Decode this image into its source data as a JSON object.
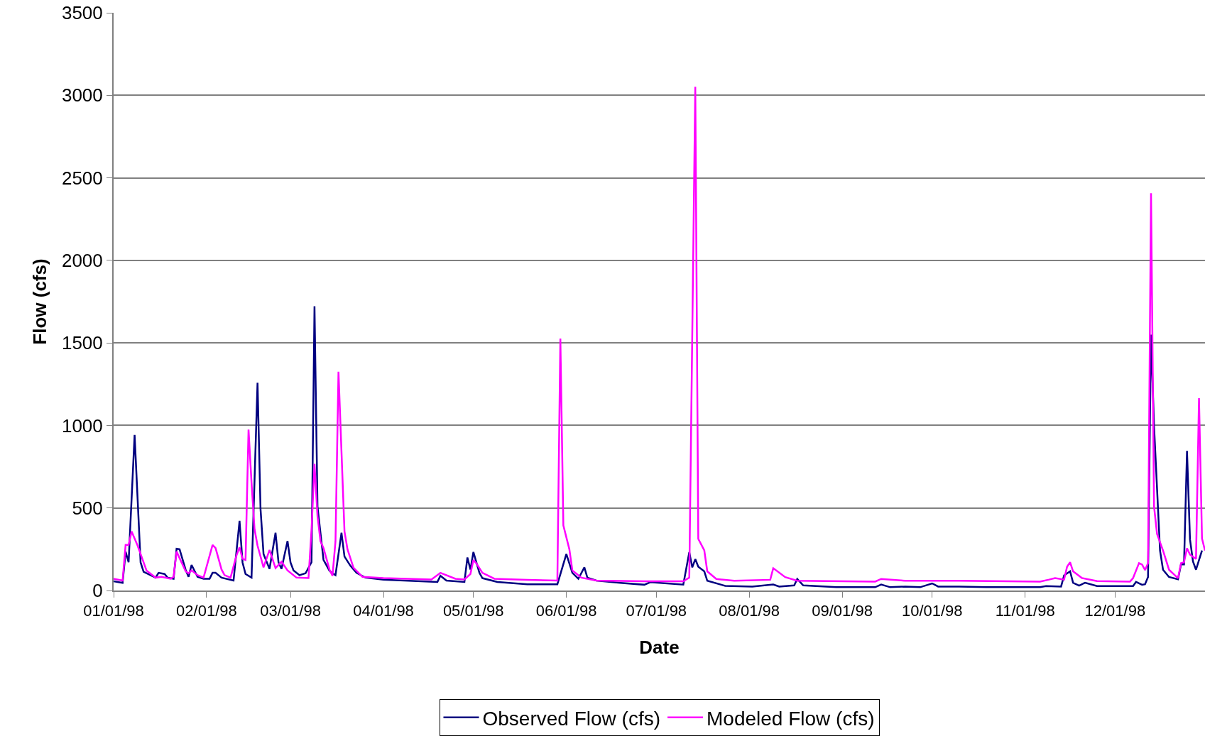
{
  "chart_data": {
    "type": "line",
    "xlabel": "Date",
    "ylabel": "Flow (cfs)",
    "xlim": [
      "1998-01-01",
      "1998-12-31"
    ],
    "xticks": [
      {
        "value": "1998-01-01",
        "label": "01/01/98"
      },
      {
        "value": "1998-02-01",
        "label": "02/01/98"
      },
      {
        "value": "1998-03-01",
        "label": "03/01/98"
      },
      {
        "value": "1998-04-01",
        "label": "04/01/98"
      },
      {
        "value": "1998-05-01",
        "label": "05/01/98"
      },
      {
        "value": "1998-06-01",
        "label": "06/01/98"
      },
      {
        "value": "1998-07-01",
        "label": "07/01/98"
      },
      {
        "value": "1998-08-01",
        "label": "08/01/98"
      },
      {
        "value": "1998-09-01",
        "label": "09/01/98"
      },
      {
        "value": "1998-10-01",
        "label": "10/01/98"
      },
      {
        "value": "1998-11-01",
        "label": "11/01/98"
      },
      {
        "value": "1998-12-01",
        "label": "12/01/98"
      }
    ],
    "ylim": [
      0,
      3500
    ],
    "yticks": [
      0,
      500,
      1000,
      1500,
      2000,
      2500,
      3000,
      3500
    ],
    "grid": "y",
    "legend": "bottom",
    "marker": "none",
    "line_style": "solid",
    "series": [
      {
        "name": "Observed Flow (cfs)",
        "color": "#000080",
        "x": [
          "1998-01-01",
          "1998-01-04",
          "1998-01-05",
          "1998-01-06",
          "1998-01-08",
          "1998-01-10",
          "1998-01-11",
          "1998-01-15",
          "1998-01-16",
          "1998-01-18",
          "1998-01-19",
          "1998-01-21",
          "1998-01-22",
          "1998-01-23",
          "1998-01-25",
          "1998-01-26",
          "1998-01-27",
          "1998-01-29",
          "1998-01-31",
          "1998-02-02",
          "1998-02-03",
          "1998-02-04",
          "1998-02-06",
          "1998-02-10",
          "1998-02-12",
          "1998-02-13",
          "1998-02-14",
          "1998-02-16",
          "1998-02-18",
          "1998-02-19",
          "1998-02-20",
          "1998-02-22",
          "1998-02-24",
          "1998-02-25",
          "1998-02-26",
          "1998-02-28",
          "1998-03-01",
          "1998-03-02",
          "1998-03-04",
          "1998-03-06",
          "1998-03-08",
          "1998-03-09",
          "1998-03-10",
          "1998-03-12",
          "1998-03-14",
          "1998-03-15",
          "1998-03-16",
          "1998-03-17",
          "1998-03-18",
          "1998-03-19",
          "1998-03-21",
          "1998-03-23",
          "1998-03-26",
          "1998-04-01",
          "1998-04-19",
          "1998-04-20",
          "1998-04-22",
          "1998-04-28",
          "1998-04-29",
          "1998-04-30",
          "1998-05-01",
          "1998-05-03",
          "1998-05-04",
          "1998-05-09",
          "1998-05-19",
          "1998-05-29",
          "1998-05-30",
          "1998-05-31",
          "1998-06-01",
          "1998-06-03",
          "1998-06-05",
          "1998-06-07",
          "1998-06-08",
          "1998-06-11",
          "1998-06-19",
          "1998-06-27",
          "1998-06-29",
          "1998-07-10",
          "1998-07-12",
          "1998-07-13",
          "1998-07-14",
          "1998-07-15",
          "1998-07-17",
          "1998-07-18",
          "1998-07-24",
          "1998-08-02",
          "1998-08-09",
          "1998-08-11",
          "1998-08-16",
          "1998-08-17",
          "1998-08-19",
          "1998-08-30",
          "1998-09-12",
          "1998-09-14",
          "1998-09-17",
          "1998-09-22",
          "1998-09-27",
          "1998-10-01",
          "1998-10-03",
          "1998-10-10",
          "1998-10-19",
          "1998-11-06",
          "1998-11-08",
          "1998-11-13",
          "1998-11-14",
          "1998-11-16",
          "1998-11-17",
          "1998-11-19",
          "1998-11-21",
          "1998-11-25",
          "1998-12-04",
          "1998-12-07",
          "1998-12-08",
          "1998-12-10",
          "1998-12-11",
          "1998-12-12",
          "1998-12-13",
          "1998-12-14",
          "1998-12-16",
          "1998-12-17",
          "1998-12-19",
          "1998-12-22",
          "1998-12-23",
          "1998-12-24",
          "1998-12-25",
          "1998-12-26",
          "1998-12-27",
          "1998-12-28",
          "1998-12-29",
          "1998-12-30"
        ],
        "values": [
          56,
          46,
          235,
          171,
          942,
          170,
          113,
          78,
          107,
          100,
          78,
          71,
          253,
          250,
          127,
          83,
          155,
          83,
          71,
          71,
          107,
          107,
          78,
          60,
          422,
          170,
          100,
          78,
          1259,
          494,
          221,
          131,
          350,
          170,
          131,
          300,
          170,
          122,
          93,
          104,
          171,
          1722,
          509,
          186,
          120,
          104,
          93,
          null,
          350,
          206,
          149,
          107,
          78,
          66,
          52,
          89,
          60,
          52,
          200,
          127,
          233,
          107,
          75,
          52,
          38,
          38,
          null,
          null,
          221,
          107,
          71,
          140,
          78,
          60,
          46,
          35,
          50,
          36,
          232,
          140,
          190,
          144,
          116,
          59,
          28,
          24,
          36,
          24,
          31,
          70,
          31,
          20,
          20,
          36,
          20,
          24,
          20,
          43,
          24,
          24,
          20,
          20,
          27,
          24,
          91,
          116,
          47,
          30,
          47,
          27,
          27,
          27,
          52,
          35,
          38,
          82,
          1550,
          997,
          242,
          126,
          82,
          68,
          158,
          158,
          846,
          309,
          175,
          126,
          null,
          242
        ]
      },
      {
        "name": "Modeled Flow (cfs)",
        "color": "#ff00ff",
        "x": [
          "1998-01-01",
          "1998-01-04",
          "1998-01-05",
          "1998-01-06",
          "1998-01-07",
          "1998-01-09",
          "1998-01-12",
          "1998-01-15",
          "1998-01-17",
          "1998-01-20",
          "1998-01-21",
          "1998-01-22",
          "1998-01-25",
          "1998-01-26",
          "1998-01-27",
          "1998-01-29",
          "1998-01-31",
          "1998-02-03",
          "1998-02-04",
          "1998-02-06",
          "1998-02-07",
          "1998-02-09",
          "1998-02-11",
          "1998-02-12",
          "1998-02-13",
          "1998-02-14",
          "1998-02-15",
          "1998-02-16",
          "1998-02-17",
          "1998-02-18",
          "1998-02-20",
          "1998-02-22",
          "1998-02-24",
          "1998-02-26",
          "1998-02-28",
          "1998-03-03",
          "1998-03-07",
          "1998-03-08",
          "1998-03-09",
          "1998-03-10",
          "1998-03-11",
          "1998-03-12",
          "1998-03-14",
          "1998-03-15",
          "1998-03-16",
          "1998-03-17",
          "1998-03-19",
          "1998-03-20",
          "1998-03-22",
          "1998-03-25",
          "1998-04-01",
          "1998-04-17",
          "1998-04-20",
          "1998-04-25",
          "1998-04-28",
          "1998-04-30",
          "1998-05-01",
          "1998-05-02",
          "1998-05-04",
          "1998-05-08",
          "1998-05-19",
          "1998-05-29",
          "1998-05-30",
          "1998-05-31",
          "1998-06-02",
          "1998-06-03",
          "1998-06-06",
          "1998-06-11",
          "1998-06-27",
          "1998-07-10",
          "1998-07-12",
          "1998-07-14",
          "1998-07-15",
          "1998-07-17",
          "1998-07-18",
          "1998-07-21",
          "1998-07-27",
          "1998-08-08",
          "1998-08-09",
          "1998-08-13",
          "1998-08-17",
          "1998-09-12",
          "1998-09-14",
          "1998-09-22",
          "1998-10-10",
          "1998-11-06",
          "1998-11-09",
          "1998-11-11",
          "1998-11-14",
          "1998-11-15",
          "1998-11-16",
          "1998-11-17",
          "1998-11-20",
          "1998-11-25",
          "1998-12-06",
          "1998-12-07",
          "1998-12-09",
          "1998-12-10",
          "1998-12-11",
          "1998-12-12",
          "1998-12-13",
          "1998-12-14",
          "1998-12-15",
          "1998-12-17",
          "1998-12-19",
          "1998-12-22",
          "1998-12-23",
          "1998-12-24",
          "1998-12-25",
          "1998-12-26",
          "1998-12-28",
          "1998-12-29",
          "1998-12-30",
          "1998-12-31"
        ],
        "values": [
          71,
          60,
          276,
          276,
          358,
          272,
          120,
          78,
          83,
          71,
          83,
          236,
          117,
          104,
          122,
          93,
          78,
          276,
          257,
          127,
          93,
          78,
          214,
          262,
          192,
          185,
          975,
          652,
          372,
          272,
          140,
          246,
          136,
          174,
          122,
          78,
          75,
          365,
          767,
          451,
          298,
          257,
          127,
          89,
          298,
          1325,
          358,
          250,
          138,
          83,
          75,
          67,
          107,
          71,
          67,
          100,
          185,
          164,
          107,
          71,
          64,
          60,
          1526,
          394,
          250,
          122,
          78,
          60,
          56,
          56,
          78,
          3052,
          313,
          243,
          116,
          70,
          59,
          65,
          135,
          81,
          59,
          54,
          70,
          59,
          59,
          54,
          66,
          75,
          66,
          144,
          171,
          116,
          75,
          57,
          54,
          75,
          166,
          157,
          124,
          166,
          2407,
          510,
          343,
          242,
          126,
          75,
          166,
          171,
          256,
          217,
          191,
          1165,
          315,
          242
        ]
      }
    ]
  }
}
